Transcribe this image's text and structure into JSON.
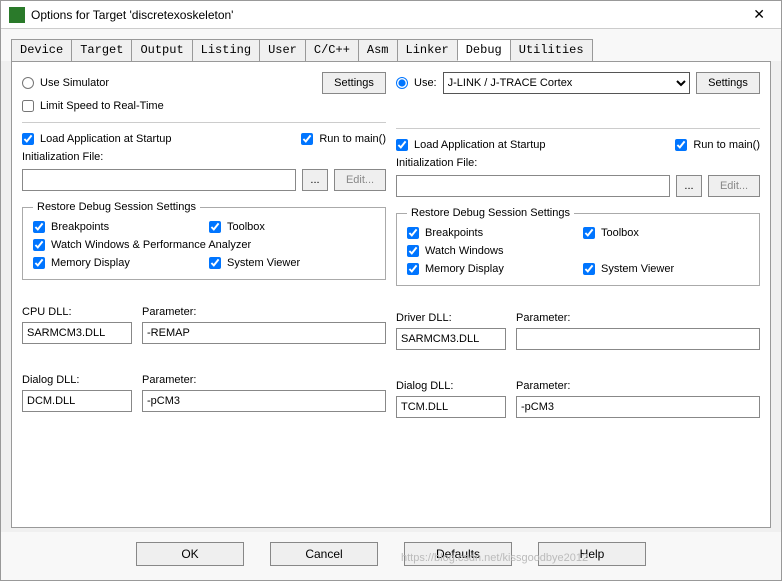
{
  "window": {
    "title": "Options for Target 'discretexoskeleton'"
  },
  "tabs": [
    "Device",
    "Target",
    "Output",
    "Listing",
    "User",
    "C/C++",
    "Asm",
    "Linker",
    "Debug",
    "Utilities"
  ],
  "active_tab": 8,
  "left": {
    "use_simulator": {
      "label": "Use Simulator",
      "checked": false
    },
    "settings_btn": "Settings",
    "limit_speed": {
      "label": "Limit Speed to Real-Time",
      "checked": false
    },
    "load_startup": {
      "label": "Load Application at Startup",
      "checked": true
    },
    "run_main": {
      "label": "Run to main()",
      "checked": true
    },
    "init_file_label": "Initialization File:",
    "init_file": "",
    "browse": "...",
    "edit": "Edit...",
    "restore_group": "Restore Debug Session Settings",
    "breakpoints": {
      "label": "Breakpoints",
      "checked": true
    },
    "toolbox": {
      "label": "Toolbox",
      "checked": true
    },
    "watch": {
      "label": "Watch Windows & Performance Analyzer",
      "checked": true
    },
    "memory": {
      "label": "Memory Display",
      "checked": true
    },
    "sysviewer": {
      "label": "System Viewer",
      "checked": true
    },
    "cpu_dll_label": "CPU DLL:",
    "cpu_dll": "SARMCM3.DLL",
    "cpu_param_label": "Parameter:",
    "cpu_param": "-REMAP",
    "dialog_dll_label": "Dialog DLL:",
    "dialog_dll": "DCM.DLL",
    "dialog_param_label": "Parameter:",
    "dialog_param": "-pCM3"
  },
  "right": {
    "use_radio": {
      "label": "Use:",
      "checked": true
    },
    "driver_select": "J-LINK / J-TRACE Cortex",
    "settings_btn": "Settings",
    "load_startup": {
      "label": "Load Application at Startup",
      "checked": true
    },
    "run_main": {
      "label": "Run to main()",
      "checked": true
    },
    "init_file_label": "Initialization File:",
    "init_file": "",
    "browse": "...",
    "edit": "Edit...",
    "restore_group": "Restore Debug Session Settings",
    "breakpoints": {
      "label": "Breakpoints",
      "checked": true
    },
    "toolbox": {
      "label": "Toolbox",
      "checked": true
    },
    "watch": {
      "label": "Watch Windows",
      "checked": true
    },
    "memory": {
      "label": "Memory Display",
      "checked": true
    },
    "sysviewer": {
      "label": "System Viewer",
      "checked": true
    },
    "driver_dll_label": "Driver DLL:",
    "driver_dll": "SARMCM3.DLL",
    "driver_param_label": "Parameter:",
    "driver_param": "",
    "dialog_dll_label": "Dialog DLL:",
    "dialog_dll": "TCM.DLL",
    "dialog_param_label": "Parameter:",
    "dialog_param": "-pCM3"
  },
  "buttons": {
    "ok": "OK",
    "cancel": "Cancel",
    "defaults": "Defaults",
    "help": "Help"
  },
  "watermark": "https://blog.csdn.net/kissgoodbye2012"
}
